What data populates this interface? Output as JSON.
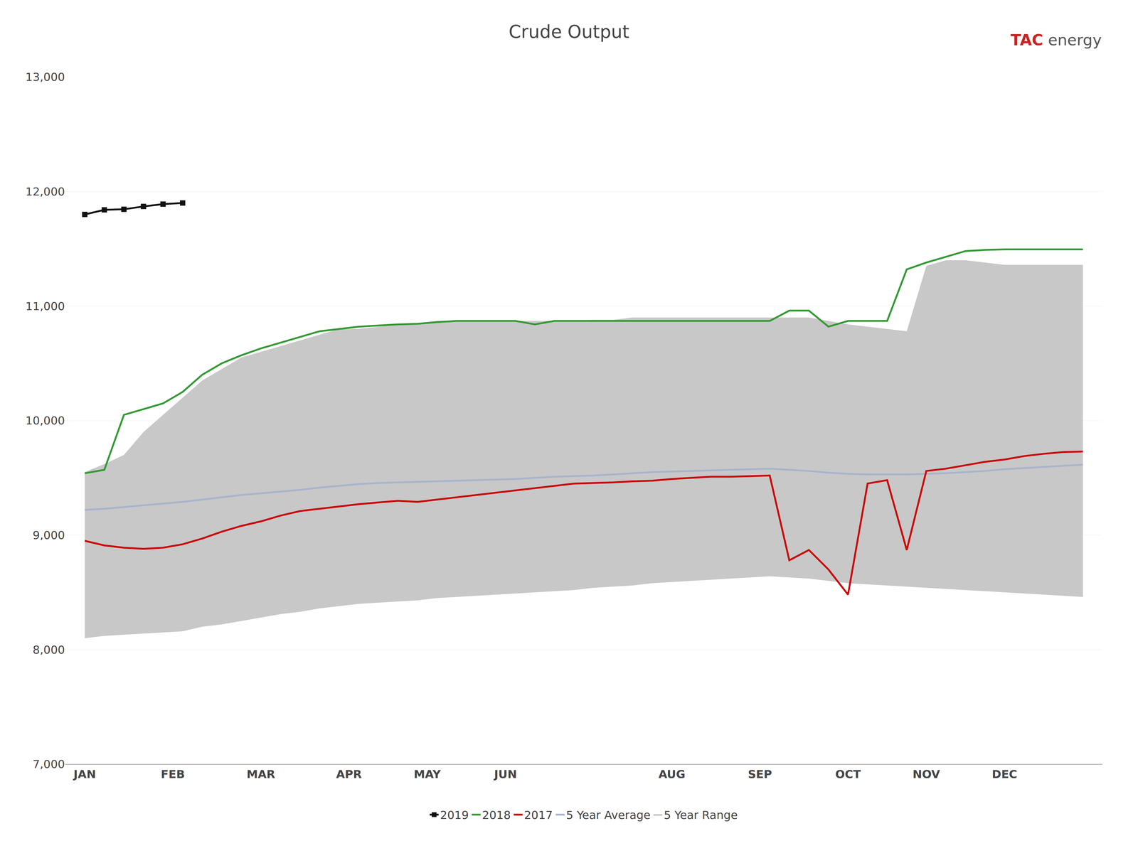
{
  "chart_data": {
    "type": "line",
    "title": "Crude Output",
    "annotations": [
      {
        "text": "TAC",
        "color": "#cc2222"
      },
      {
        "text": "energy",
        "color": "#555555"
      }
    ],
    "x": [
      0,
      1,
      2,
      3,
      4,
      5,
      6,
      7,
      8,
      9,
      10,
      11,
      12,
      13,
      14,
      15,
      16,
      17,
      18,
      19,
      20,
      21,
      22,
      23,
      24,
      25,
      26,
      27,
      28,
      29,
      30,
      31,
      32,
      33,
      34,
      35,
      36,
      37,
      38,
      39,
      40,
      41,
      42,
      43,
      44,
      45,
      46,
      47,
      48,
      49,
      50,
      51
    ],
    "xlim": [
      -1,
      52
    ],
    "xticks": [
      {
        "value": 0,
        "label": "JAN"
      },
      {
        "value": 4.5,
        "label": "FEB"
      },
      {
        "value": 9,
        "label": "MAR"
      },
      {
        "value": 13.5,
        "label": "APR"
      },
      {
        "value": 17.5,
        "label": "MAY"
      },
      {
        "value": 21.5,
        "label": "JUN"
      },
      {
        "value": 30,
        "label": "AUG"
      },
      {
        "value": 34.5,
        "label": "SEP"
      },
      {
        "value": 39,
        "label": "OCT"
      },
      {
        "value": 43,
        "label": "NOV"
      },
      {
        "value": 47,
        "label": "DEC"
      }
    ],
    "ylim": [
      7000,
      13000
    ],
    "yticks": [
      {
        "value": 7000,
        "label": "7,000"
      },
      {
        "value": 8000,
        "label": "8,000"
      },
      {
        "value": 9000,
        "label": "9,000"
      },
      {
        "value": 10000,
        "label": "10,000"
      },
      {
        "value": 11000,
        "label": "11,000"
      },
      {
        "value": 12000,
        "label": "12,000"
      },
      {
        "value": 13000,
        "label": "13,000"
      }
    ],
    "grid": true,
    "legend": "bottom",
    "series": [
      {
        "name": "5 Year Range",
        "type": "range",
        "color": "#c8c8c8",
        "upper": [
          9550,
          9620,
          9700,
          9900,
          10050,
          10200,
          10350,
          10450,
          10550,
          10600,
          10650,
          10700,
          10750,
          10800,
          10800,
          10820,
          10840,
          10850,
          10870,
          10870,
          10870,
          10870,
          10870,
          10870,
          10870,
          10870,
          10880,
          10880,
          10900,
          10900,
          10900,
          10900,
          10900,
          10900,
          10900,
          10900,
          10900,
          10900,
          10870,
          10840,
          10820,
          10800,
          10780,
          11350,
          11400,
          11400,
          11380,
          11360,
          11360,
          11360,
          11360,
          11360
        ],
        "lower": [
          8100,
          8120,
          8130,
          8140,
          8150,
          8160,
          8200,
          8220,
          8250,
          8280,
          8310,
          8330,
          8360,
          8380,
          8400,
          8410,
          8420,
          8430,
          8450,
          8460,
          8470,
          8480,
          8490,
          8500,
          8510,
          8520,
          8540,
          8550,
          8560,
          8580,
          8590,
          8600,
          8610,
          8620,
          8630,
          8640,
          8630,
          8620,
          8600,
          8580,
          8570,
          8560,
          8550,
          8540,
          8530,
          8520,
          8510,
          8500,
          8490,
          8480,
          8470,
          8460
        ]
      },
      {
        "name": "5 Year Average",
        "color": "#a8b4cc",
        "values": [
          9220,
          9230,
          9245,
          9260,
          9275,
          9290,
          9310,
          9330,
          9350,
          9365,
          9380,
          9395,
          9415,
          9430,
          9445,
          9455,
          9460,
          9465,
          9470,
          9475,
          9480,
          9485,
          9490,
          9500,
          9510,
          9515,
          9520,
          9530,
          9540,
          9550,
          9555,
          9560,
          9565,
          9570,
          9575,
          9580,
          9570,
          9560,
          9545,
          9535,
          9530,
          9530,
          9530,
          9535,
          9540,
          9550,
          9560,
          9575,
          9585,
          9595,
          9605,
          9615
        ]
      },
      {
        "name": "2017",
        "color": "#cc0000",
        "values": [
          8950,
          8910,
          8890,
          8880,
          8890,
          8920,
          8970,
          9030,
          9080,
          9120,
          9170,
          9210,
          9230,
          9250,
          9270,
          9285,
          9300,
          9290,
          9310,
          9330,
          9350,
          9370,
          9390,
          9410,
          9430,
          9450,
          9455,
          9460,
          9470,
          9475,
          9490,
          9500,
          9510,
          9510,
          9515,
          9520,
          8780,
          8870,
          8700,
          8480,
          9450,
          9480,
          8870,
          9560,
          9580,
          9610,
          9640,
          9660,
          9690,
          9710,
          9725,
          9730
        ]
      },
      {
        "name": "2018",
        "color": "#339933",
        "values": [
          9540,
          9570,
          10050,
          10100,
          10150,
          10250,
          10400,
          10500,
          10570,
          10630,
          10680,
          10730,
          10780,
          10800,
          10820,
          10830,
          10840,
          10845,
          10860,
          10870,
          10870,
          10870,
          10870,
          10840,
          10870,
          10870,
          10870,
          10870,
          10870,
          10870,
          10870,
          10870,
          10870,
          10870,
          10870,
          10870,
          10960,
          10960,
          10820,
          10870,
          10870,
          10870,
          11320,
          11380,
          11430,
          11480,
          11490,
          11495,
          11495,
          11495,
          11495,
          11495
        ]
      },
      {
        "name": "2019",
        "color": "#111111",
        "marker": "square",
        "x": [
          0,
          1,
          2,
          3,
          4,
          5
        ],
        "values": [
          11800,
          11840,
          11845,
          11870,
          11890,
          11900
        ]
      }
    ]
  }
}
